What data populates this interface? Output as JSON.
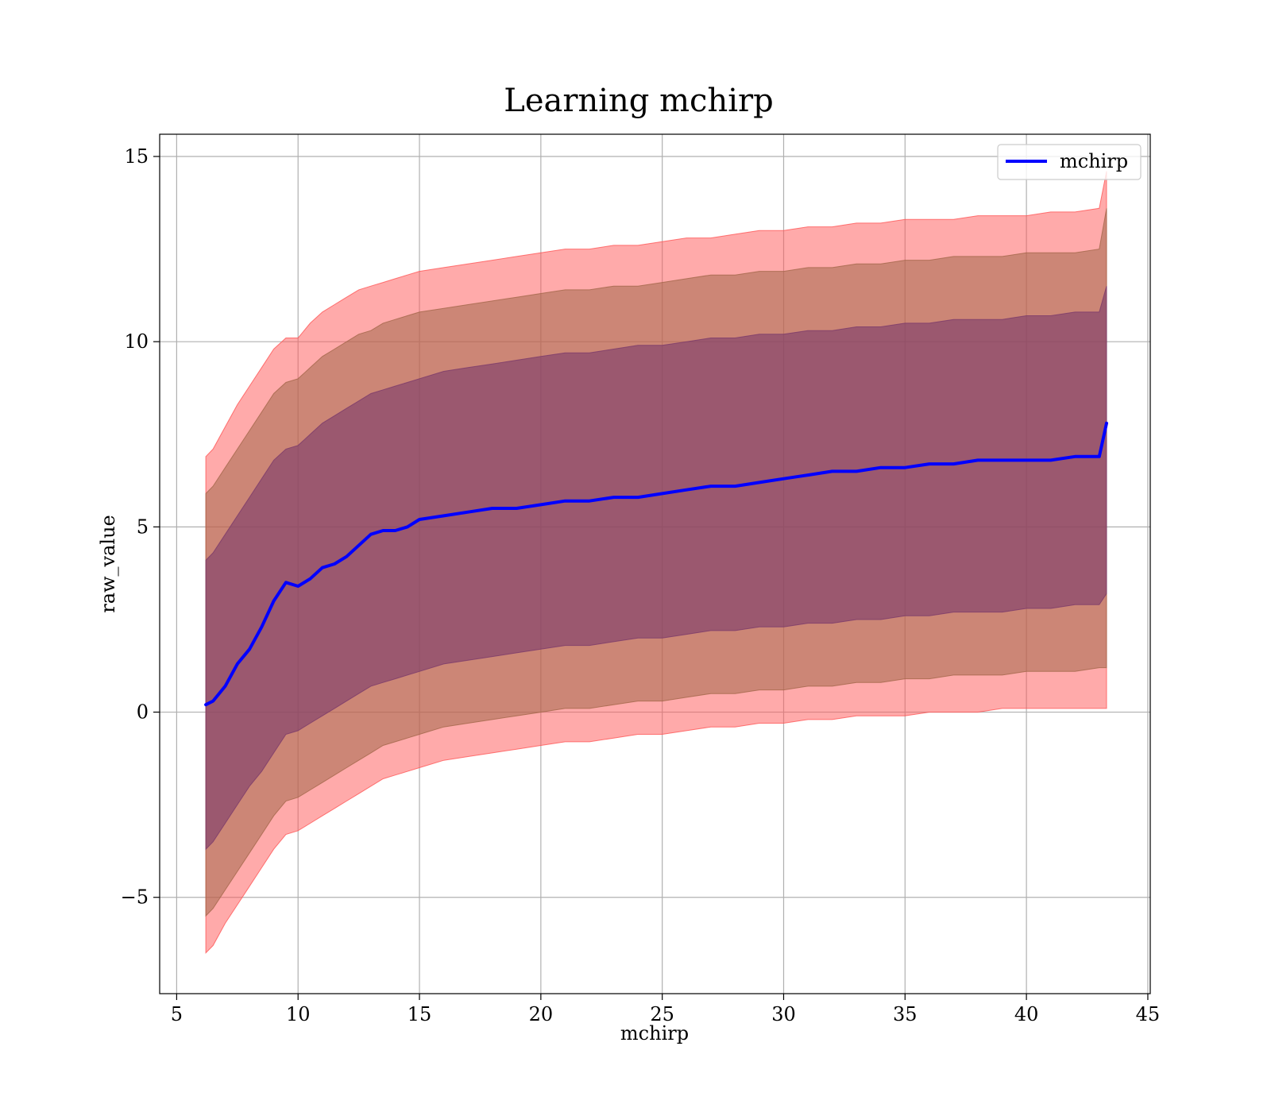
{
  "chart_data": {
    "type": "area",
    "title": "Learning mchirp",
    "xlabel": "mchirp",
    "ylabel": "raw_value",
    "xlim": [
      4.3,
      45.1
    ],
    "ylim": [
      -7.6,
      15.6
    ],
    "xticks": [
      5,
      10,
      15,
      20,
      25,
      30,
      35,
      40,
      45
    ],
    "xtick_labels": [
      "5",
      "10",
      "15",
      "20",
      "25",
      "30",
      "35",
      "40",
      "45"
    ],
    "yticks": [
      -5,
      0,
      5,
      10,
      15
    ],
    "ytick_labels": [
      "−5",
      "0",
      "5",
      "10",
      "15"
    ],
    "grid": true,
    "legend": {
      "position": "upper-right",
      "entries": [
        "mchirp"
      ]
    },
    "colors": {
      "line": "#0000ff",
      "band_3sigma": "#ff5555",
      "band_2sigma": "#a2674a",
      "band_1sigma": "#7a3a6a"
    },
    "x": [
      6.2,
      6.5,
      7,
      7.5,
      8,
      8.5,
      9,
      9.5,
      10,
      10.5,
      11,
      11.5,
      12,
      12.5,
      13,
      13.5,
      14,
      14.5,
      15,
      16,
      17,
      18,
      19,
      20,
      21,
      22,
      23,
      24,
      25,
      26,
      27,
      28,
      29,
      30,
      31,
      32,
      33,
      34,
      35,
      36,
      37,
      38,
      39,
      40,
      41,
      42,
      43,
      43.3
    ],
    "series": [
      {
        "name": "mchirp",
        "values": [
          0.2,
          0.3,
          0.7,
          1.3,
          1.7,
          2.3,
          3.0,
          3.5,
          3.4,
          3.6,
          3.9,
          4.0,
          4.2,
          4.5,
          4.8,
          4.9,
          4.9,
          5.0,
          5.2,
          5.3,
          5.4,
          5.5,
          5.5,
          5.6,
          5.7,
          5.7,
          5.8,
          5.8,
          5.9,
          6.0,
          6.1,
          6.1,
          6.2,
          6.3,
          6.4,
          6.5,
          6.5,
          6.6,
          6.6,
          6.7,
          6.7,
          6.8,
          6.8,
          6.8,
          6.8,
          6.9,
          6.9,
          7.8
        ]
      }
    ],
    "bands": [
      {
        "level": "3sigma",
        "upper": [
          6.9,
          7.1,
          7.7,
          8.3,
          8.8,
          9.3,
          9.8,
          10.1,
          10.1,
          10.5,
          10.8,
          11.0,
          11.2,
          11.4,
          11.5,
          11.6,
          11.7,
          11.8,
          11.9,
          12.0,
          12.1,
          12.2,
          12.3,
          12.4,
          12.5,
          12.5,
          12.6,
          12.6,
          12.7,
          12.8,
          12.8,
          12.9,
          13.0,
          13.0,
          13.1,
          13.1,
          13.2,
          13.2,
          13.3,
          13.3,
          13.3,
          13.4,
          13.4,
          13.4,
          13.5,
          13.5,
          13.6,
          14.6
        ],
        "lower": [
          -6.5,
          -6.3,
          -5.7,
          -5.2,
          -4.7,
          -4.2,
          -3.7,
          -3.3,
          -3.2,
          -3.0,
          -2.8,
          -2.6,
          -2.4,
          -2.2,
          -2.0,
          -1.8,
          -1.7,
          -1.6,
          -1.5,
          -1.3,
          -1.2,
          -1.1,
          -1.0,
          -0.9,
          -0.8,
          -0.8,
          -0.7,
          -0.6,
          -0.6,
          -0.5,
          -0.4,
          -0.4,
          -0.3,
          -0.3,
          -0.2,
          -0.2,
          -0.1,
          -0.1,
          -0.1,
          0.0,
          0.0,
          0.0,
          0.1,
          0.1,
          0.1,
          0.1,
          0.1,
          0.1
        ]
      },
      {
        "level": "2sigma",
        "upper": [
          5.9,
          6.1,
          6.6,
          7.1,
          7.6,
          8.1,
          8.6,
          8.9,
          9.0,
          9.3,
          9.6,
          9.8,
          10.0,
          10.2,
          10.3,
          10.5,
          10.6,
          10.7,
          10.8,
          10.9,
          11.0,
          11.1,
          11.2,
          11.3,
          11.4,
          11.4,
          11.5,
          11.5,
          11.6,
          11.7,
          11.8,
          11.8,
          11.9,
          11.9,
          12.0,
          12.0,
          12.1,
          12.1,
          12.2,
          12.2,
          12.3,
          12.3,
          12.3,
          12.4,
          12.4,
          12.4,
          12.5,
          13.6
        ],
        "lower": [
          -5.5,
          -5.3,
          -4.8,
          -4.3,
          -3.8,
          -3.3,
          -2.8,
          -2.4,
          -2.3,
          -2.1,
          -1.9,
          -1.7,
          -1.5,
          -1.3,
          -1.1,
          -0.9,
          -0.8,
          -0.7,
          -0.6,
          -0.4,
          -0.3,
          -0.2,
          -0.1,
          0.0,
          0.1,
          0.1,
          0.2,
          0.3,
          0.3,
          0.4,
          0.5,
          0.5,
          0.6,
          0.6,
          0.7,
          0.7,
          0.8,
          0.8,
          0.9,
          0.9,
          1.0,
          1.0,
          1.0,
          1.1,
          1.1,
          1.1,
          1.2,
          1.2
        ]
      },
      {
        "level": "1sigma",
        "upper": [
          4.1,
          4.3,
          4.8,
          5.3,
          5.8,
          6.3,
          6.8,
          7.1,
          7.2,
          7.5,
          7.8,
          8.0,
          8.2,
          8.4,
          8.6,
          8.7,
          8.8,
          8.9,
          9.0,
          9.2,
          9.3,
          9.4,
          9.5,
          9.6,
          9.7,
          9.7,
          9.8,
          9.9,
          9.9,
          10.0,
          10.1,
          10.1,
          10.2,
          10.2,
          10.3,
          10.3,
          10.4,
          10.4,
          10.5,
          10.5,
          10.6,
          10.6,
          10.6,
          10.7,
          10.7,
          10.8,
          10.8,
          11.5
        ],
        "lower": [
          -3.7,
          -3.5,
          -3.0,
          -2.5,
          -2.0,
          -1.6,
          -1.1,
          -0.6,
          -0.5,
          -0.3,
          -0.1,
          0.1,
          0.3,
          0.5,
          0.7,
          0.8,
          0.9,
          1.0,
          1.1,
          1.3,
          1.4,
          1.5,
          1.6,
          1.7,
          1.8,
          1.8,
          1.9,
          2.0,
          2.0,
          2.1,
          2.2,
          2.2,
          2.3,
          2.3,
          2.4,
          2.4,
          2.5,
          2.5,
          2.6,
          2.6,
          2.7,
          2.7,
          2.7,
          2.8,
          2.8,
          2.9,
          2.9,
          3.2
        ]
      }
    ]
  }
}
